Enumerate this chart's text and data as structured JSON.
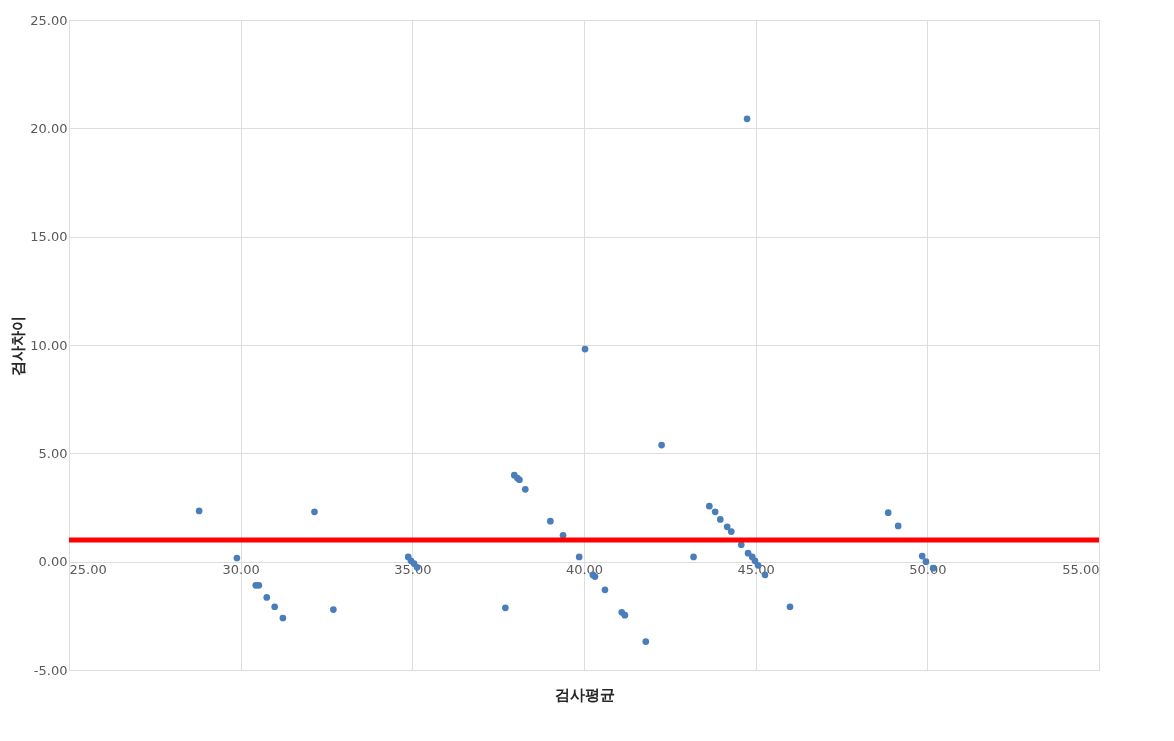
{
  "chart_data": {
    "type": "scatter",
    "xlabel": "검사평균",
    "ylabel": "검사차이",
    "x": [
      28.79,
      29.89,
      30.44,
      30.53,
      30.76,
      30.99,
      31.23,
      32.15,
      32.7,
      34.88,
      34.96,
      35.05,
      35.14,
      37.71,
      37.97,
      38.06,
      38.12,
      38.29,
      39.02,
      39.39,
      39.86,
      40.03,
      40.26,
      40.32,
      40.61,
      41.1,
      41.19,
      41.8,
      42.26,
      43.19,
      43.65,
      43.82,
      43.97,
      44.17,
      44.29,
      44.58,
      44.75,
      44.78,
      44.9,
      44.98,
      45.07,
      45.27,
      46.0,
      48.86,
      49.15,
      49.85,
      49.96,
      50.17
    ],
    "series": [
      {
        "color": "#4a7ebb",
        "values": [
          2.34,
          0.17,
          -1.09,
          -1.09,
          -1.65,
          -2.08,
          -2.6,
          2.3,
          -2.21,
          0.22,
          0.04,
          -0.09,
          -0.26,
          -2.13,
          3.99,
          3.86,
          3.78,
          3.34,
          1.87,
          1.22,
          0.22,
          9.81,
          -0.61,
          -0.69,
          -1.3,
          -2.34,
          -2.47,
          -3.69,
          5.38,
          0.22,
          2.56,
          2.3,
          1.95,
          1.61,
          1.39,
          0.78,
          20.44,
          0.39,
          0.22,
          0.04,
          -0.17,
          -0.61,
          -2.08,
          2.26,
          1.65,
          0.26,
          0.0,
          -0.3
        ]
      },
      {
        "type": "line",
        "marker": "none",
        "color": "#ff0000",
        "x": [
          25,
          55
        ],
        "values": [
          1.0,
          1.0
        ]
      }
    ],
    "xlim": [
      25,
      55
    ],
    "xticks": [
      {
        "value": 25,
        "label": "25.00"
      },
      {
        "value": 30,
        "label": "30.00"
      },
      {
        "value": 35,
        "label": "35.00"
      },
      {
        "value": 40,
        "label": "40.00"
      },
      {
        "value": 45,
        "label": "45.00"
      },
      {
        "value": 50,
        "label": "50.00"
      },
      {
        "value": 55,
        "label": "55.00"
      }
    ],
    "ylim": [
      -5,
      25
    ],
    "yticks": [
      {
        "value": -5,
        "label": "-5.00"
      },
      {
        "value": 0,
        "label": "0.00"
      },
      {
        "value": 5,
        "label": "5.00"
      },
      {
        "value": 10,
        "label": "10.00"
      },
      {
        "value": 15,
        "label": "15.00"
      },
      {
        "value": 20,
        "label": "20.00"
      },
      {
        "value": 25,
        "label": "25.00"
      }
    ],
    "grid": true,
    "marker": "circle"
  }
}
